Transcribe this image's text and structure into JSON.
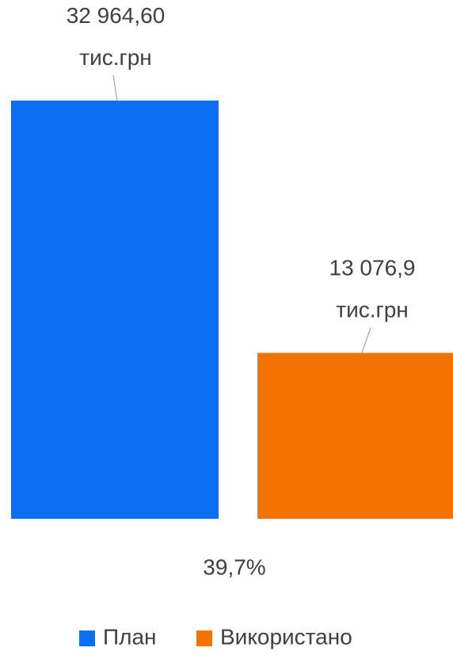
{
  "chart_data": {
    "type": "bar",
    "series": [
      {
        "name": "План",
        "color": "#0a6ff0",
        "values": [
          32964.6
        ],
        "value_labels": [
          "32 964,60\nтис.грн"
        ]
      },
      {
        "name": "Використано",
        "color": "#f57300",
        "values": [
          13076.9
        ],
        "value_labels": [
          "13 076,9\nтис.грн"
        ]
      }
    ],
    "annotations": [
      "39,7%"
    ],
    "legend": "bottom"
  }
}
